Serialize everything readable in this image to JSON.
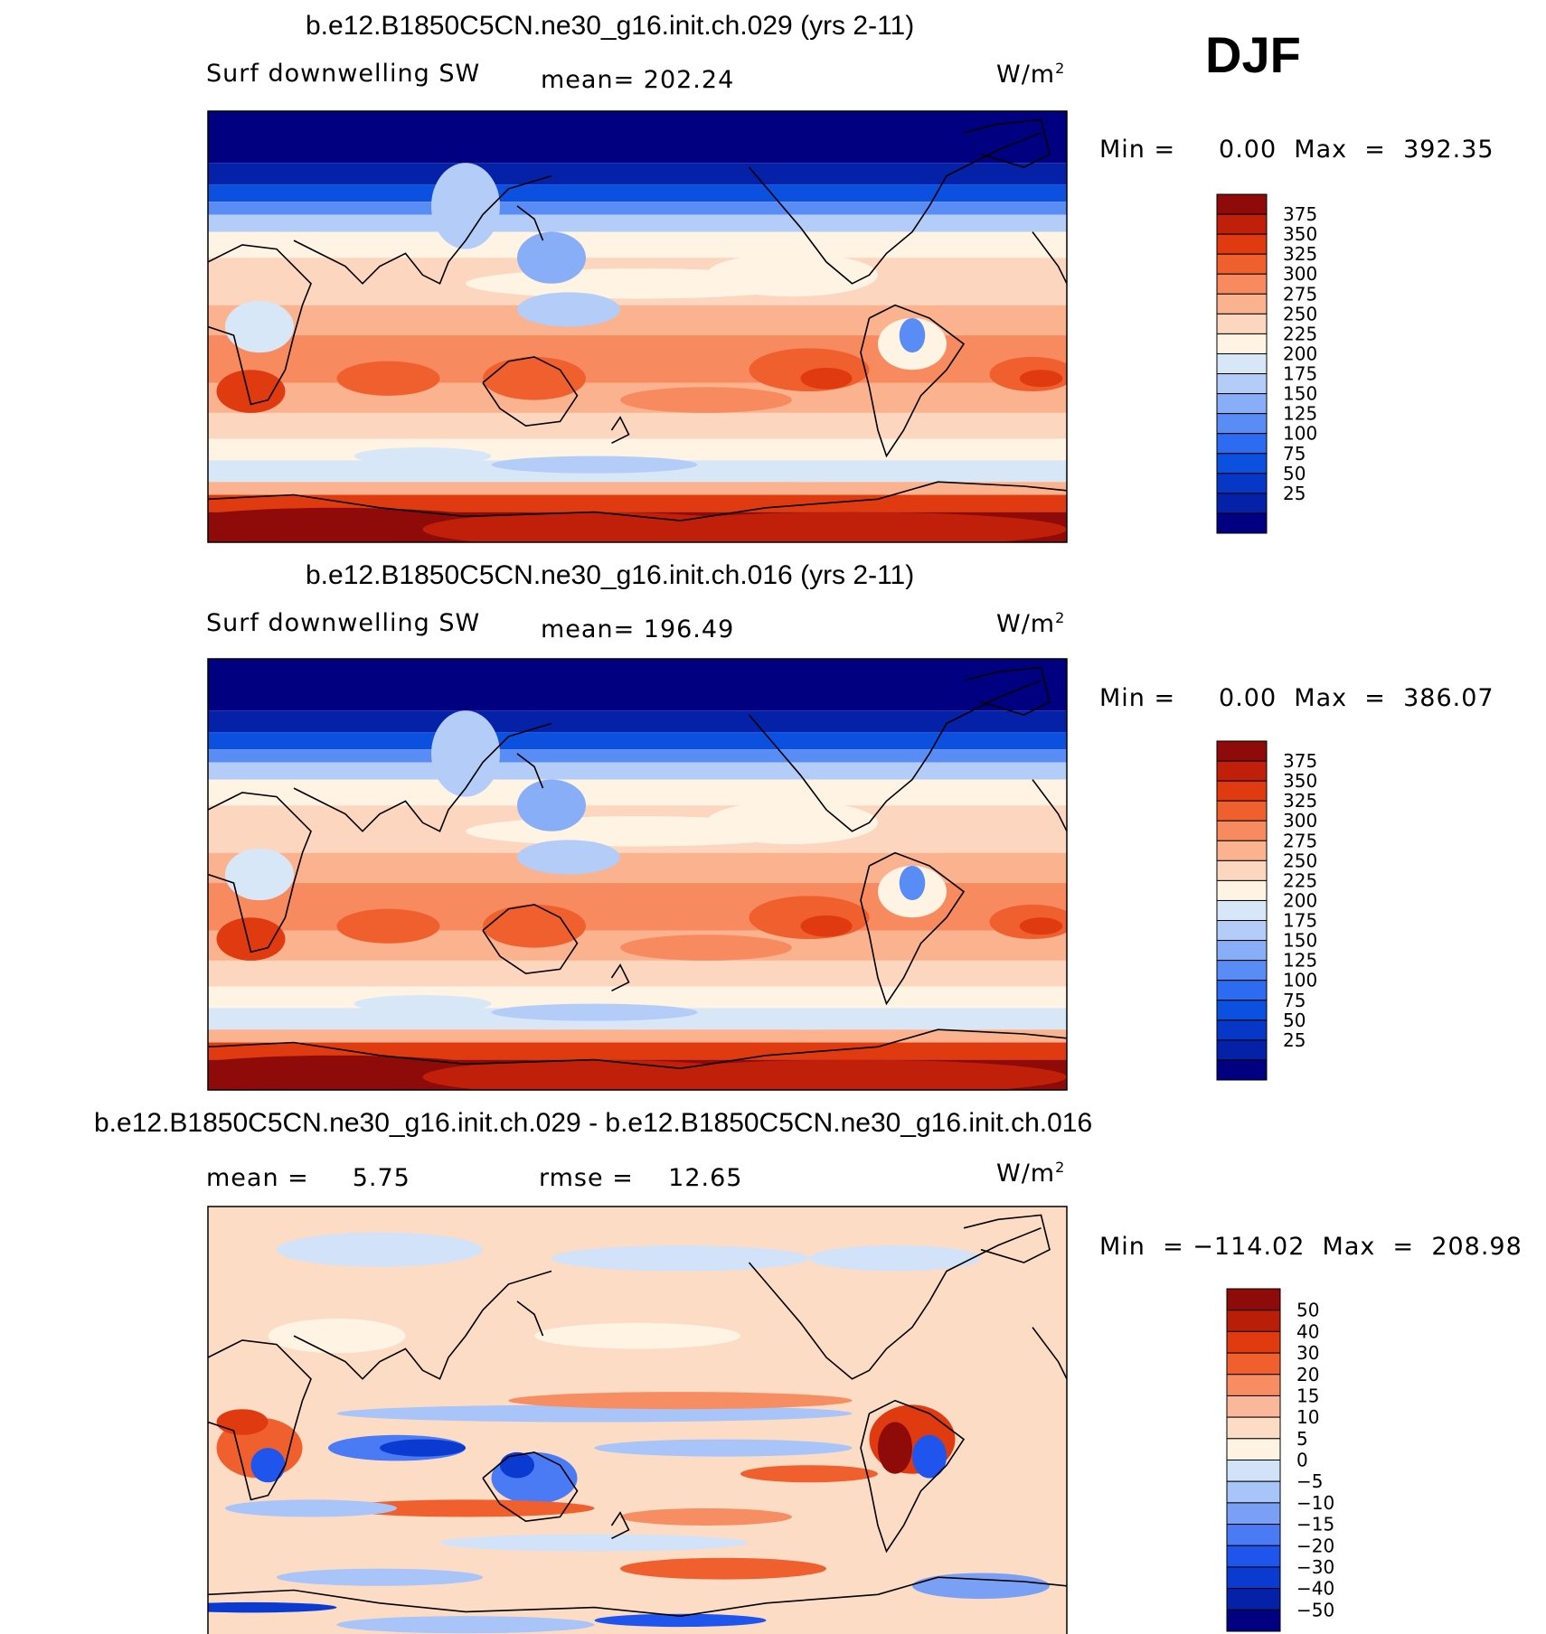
{
  "season": "DJF",
  "colors": {
    "abs_scale": [
      "#000080",
      "#0421a8",
      "#0637c7",
      "#0c50e0",
      "#2d6cf0",
      "#5a8cf6",
      "#88aef8",
      "#b4cdf8",
      "#d8e7f8",
      "#fff3e4",
      "#fdd6bf",
      "#fbb28f",
      "#f78a5e",
      "#f0602f",
      "#e03a10",
      "#c0200a",
      "#8e0b0a"
    ],
    "diff_scale": [
      "#000080",
      "#0421a8",
      "#0a3ad0",
      "#1f55ec",
      "#4a7af4",
      "#7aa0f6",
      "#a8c4f8",
      "#d2e2f8",
      "#fff3e4",
      "#fddcc6",
      "#fbb799",
      "#f78d62",
      "#f0602f",
      "#e03a10",
      "#b81e08",
      "#8e0b0a"
    ],
    "coast": "#000000"
  },
  "panels": [
    {
      "title": "b.e12.B1850C5CN.ne30_g16.init.ch.029 (yrs 2-11)",
      "left_label": "Surf downwelling SW",
      "center_label": "mean= 202.24",
      "units": "W/m",
      "units_sup": "2",
      "minmax": "Min =     0.00  Max  =  392.35",
      "colorbar_labels": [
        "375",
        "350",
        "325",
        "300",
        "275",
        "250",
        "225",
        "200",
        "175",
        "150",
        "125",
        "100",
        "75",
        "50",
        "25"
      ],
      "field": "abs"
    },
    {
      "title": "b.e12.B1850C5CN.ne30_g16.init.ch.016 (yrs 2-11)",
      "left_label": "Surf downwelling SW",
      "center_label": "mean= 196.49",
      "units": "W/m",
      "units_sup": "2",
      "minmax": "Min =     0.00  Max  =  386.07",
      "colorbar_labels": [
        "375",
        "350",
        "325",
        "300",
        "275",
        "250",
        "225",
        "200",
        "175",
        "150",
        "125",
        "100",
        "75",
        "50",
        "25"
      ],
      "field": "abs"
    },
    {
      "title": "b.e12.B1850C5CN.ne30_g16.init.ch.029 - b.e12.B1850C5CN.ne30_g16.init.ch.016",
      "left_label": "mean =     5.75",
      "center_label": "rmse =    12.65",
      "units": "W/m",
      "units_sup": "2",
      "minmax": "Min  = −114.02  Max  =  208.98",
      "colorbar_labels": [
        "50",
        "40",
        "30",
        "20",
        "15",
        "10",
        "5",
        "0",
        "−5",
        "−10",
        "−15",
        "−20",
        "−30",
        "−40",
        "−50"
      ],
      "field": "diff"
    }
  ]
}
